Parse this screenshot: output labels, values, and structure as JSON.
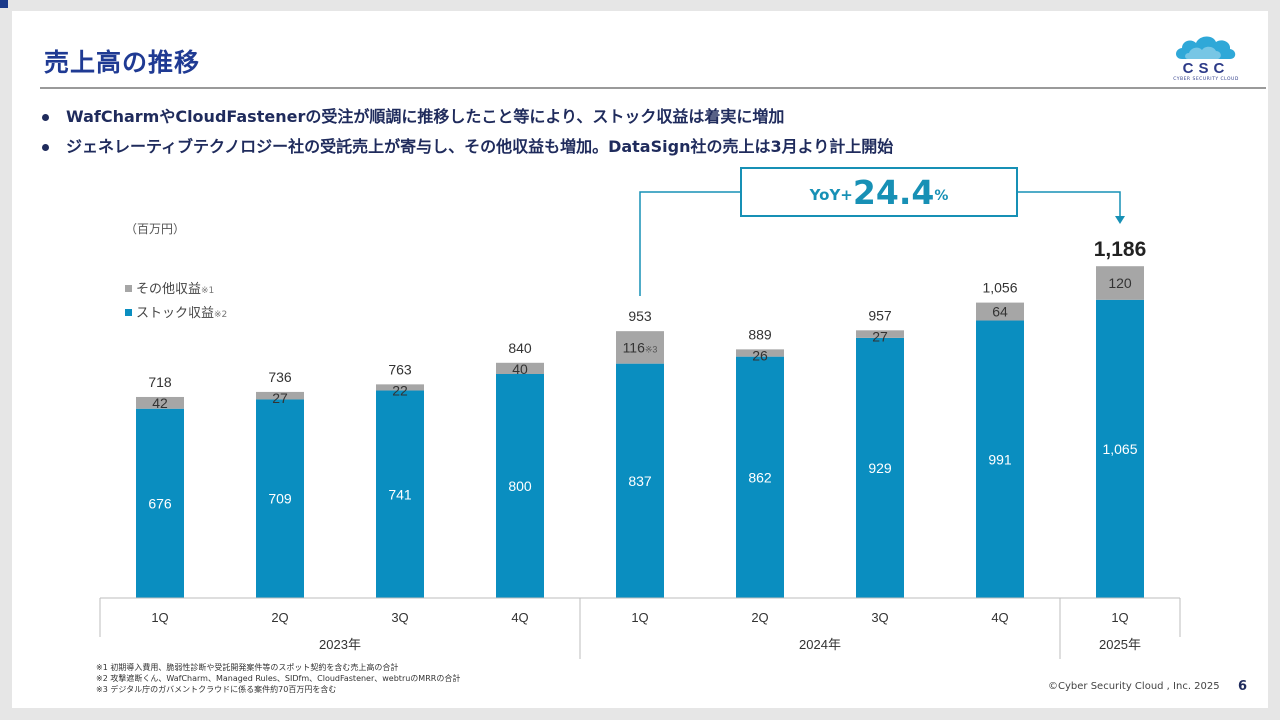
{
  "title": "売上高の推移",
  "logo": {
    "name": "CSC",
    "subtitle": "CYBER SECURITY CLOUD"
  },
  "bullets": [
    "WafCharmやCloudFastenerの受注が順調に推移したこと等により、ストック収益は着実に増加",
    "ジェネレーティブテクノロジー社の受託売上が寄与し、その他収益も増加。DataSign社の売上は3月より計上開始"
  ],
  "unit": "（百万円）",
  "legend": [
    {
      "label": "その他収益",
      "note": "※1",
      "color": "#a6a6a6"
    },
    {
      "label": "ストック収益",
      "note": "※2",
      "color": "#0a8ec0"
    }
  ],
  "yoy": {
    "prefix": "YoY+",
    "value": "24.4",
    "suffix": "%"
  },
  "chart_data": {
    "type": "bar",
    "stacked": true,
    "categories": [
      "1Q",
      "2Q",
      "3Q",
      "4Q",
      "1Q",
      "2Q",
      "3Q",
      "4Q",
      "1Q"
    ],
    "years": [
      {
        "label": "2023年",
        "span": 4
      },
      {
        "label": "2024年",
        "span": 4
      },
      {
        "label": "2025年",
        "span": 1
      }
    ],
    "series": [
      {
        "name": "ストック収益",
        "color": "#0a8ec0",
        "values": [
          676,
          709,
          741,
          800,
          837,
          862,
          929,
          991,
          1065
        ]
      },
      {
        "name": "その他収益",
        "color": "#a6a6a6",
        "values": [
          42,
          27,
          22,
          40,
          116,
          26,
          27,
          64,
          120
        ]
      }
    ],
    "totals": [
      "718",
      "736",
      "763",
      "840",
      "953",
      "889",
      "957",
      "1,056",
      "1,186"
    ],
    "stock_labels": [
      "676",
      "709",
      "741",
      "800",
      "837",
      "862",
      "929",
      "991",
      "1,065"
    ],
    "other_labels": [
      "42",
      "27",
      "22",
      "40",
      "116",
      "26",
      "27",
      "64",
      "120"
    ],
    "other_notes": [
      "",
      "",
      "",
      "",
      "※3",
      "",
      "",
      "",
      ""
    ],
    "ylim": [
      0,
      1186
    ],
    "grid": false,
    "legend_position": "top-left"
  },
  "footnotes": [
    "※1 初期導入費用、脆弱性診断や受託開発案件等のスポット契約を含む売上高の合計",
    "※2 攻撃遮断くん、WafCharm、Managed Rules、SIDfm、CloudFastener、webtruのMRRの合計",
    "※3 デジタル庁のガバメントクラウドに係る案件約70百万円を含む"
  ],
  "copyright": "©Cyber Security Cloud , Inc. 2025",
  "page_number": "6"
}
